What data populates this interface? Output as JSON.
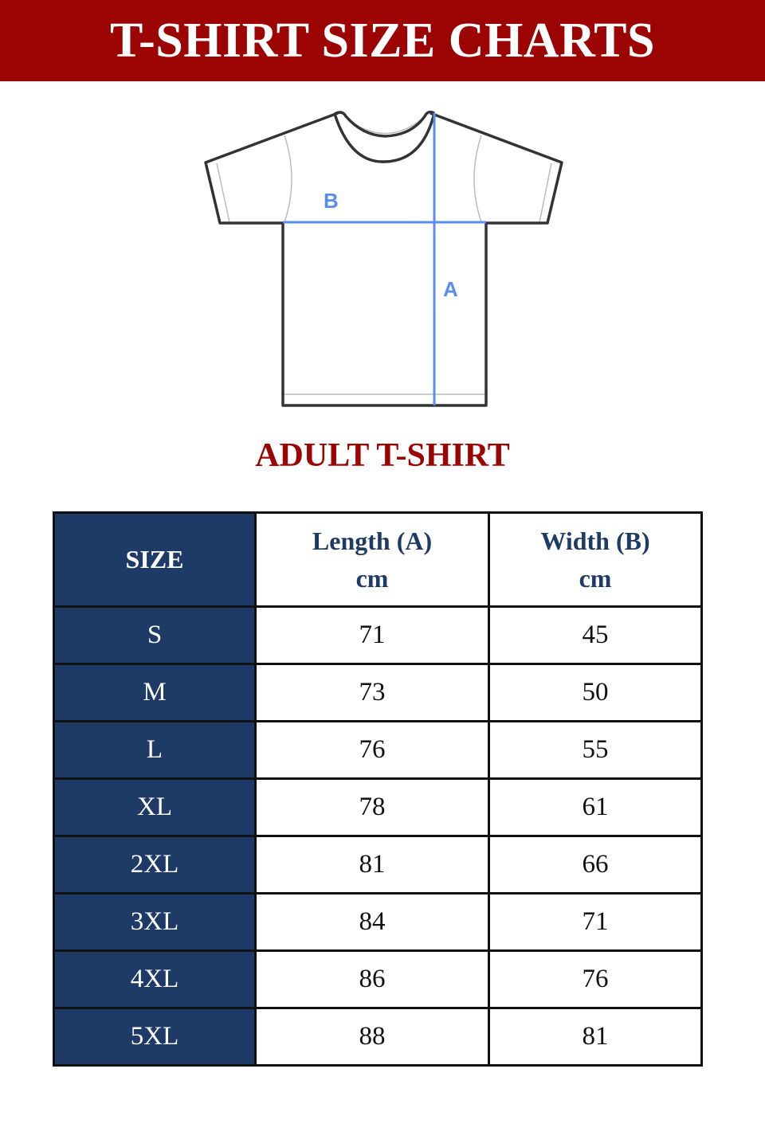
{
  "header": {
    "title": "T-SHIRT SIZE CHARTS"
  },
  "diagram": {
    "label_width": "B",
    "label_length": "A",
    "measure_color": "#5b8def",
    "outline_color": "#333333"
  },
  "subtitle": "ADULT T-SHIRT",
  "colors": {
    "banner": "#9c0404",
    "size_column": "#1e3a66"
  },
  "table": {
    "headers": {
      "size": "SIZE",
      "length": {
        "line1": "Length (A)",
        "line2": "cm"
      },
      "width": {
        "line1": "Width (B)",
        "line2": "cm"
      }
    },
    "rows": [
      {
        "size": "S",
        "length": "71",
        "width": "45"
      },
      {
        "size": "M",
        "length": "73",
        "width": "50"
      },
      {
        "size": "L",
        "length": "76",
        "width": "55"
      },
      {
        "size": "XL",
        "length": "78",
        "width": "61"
      },
      {
        "size": "2XL",
        "length": "81",
        "width": "66"
      },
      {
        "size": "3XL",
        "length": "84",
        "width": "71"
      },
      {
        "size": "4XL",
        "length": "86",
        "width": "76"
      },
      {
        "size": "5XL",
        "length": "88",
        "width": "81"
      }
    ]
  }
}
